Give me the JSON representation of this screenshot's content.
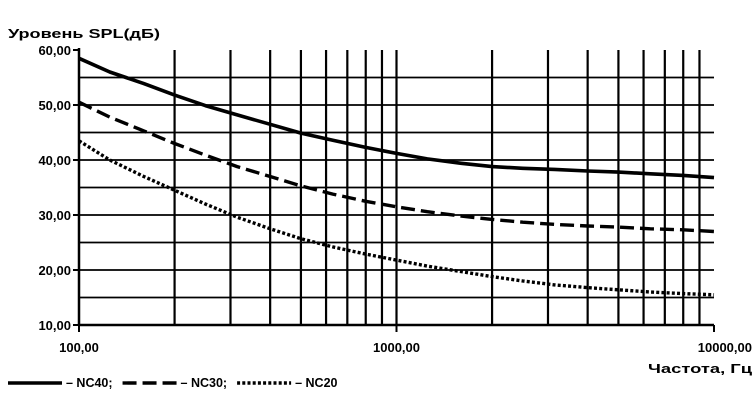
{
  "chart_data": {
    "type": "line",
    "title": "",
    "ylabel": "Уровень SPL(дБ)",
    "xlabel": "Частота, Гц",
    "x_scale": "log",
    "xlim": [
      100,
      10000
    ],
    "ylim": [
      10,
      60
    ],
    "grid": true,
    "legend_position": "bottom-left",
    "x_ticks": [
      100,
      1000,
      10000
    ],
    "x_tick_labels": [
      "100,00",
      "1000,00",
      "10000,00"
    ],
    "y_ticks": [
      10,
      20,
      30,
      40,
      50,
      60
    ],
    "y_tick_labels": [
      "10,00",
      "20,00",
      "30,00",
      "40,00",
      "50,00",
      "60,00"
    ],
    "x": [
      100,
      125,
      160,
      200,
      250,
      315,
      400,
      500,
      630,
      800,
      1000,
      1250,
      1600,
      2000,
      2500,
      3150,
      4000,
      5000,
      6300,
      8000,
      10000
    ],
    "series": [
      {
        "name": "NC40",
        "legend_label": "– NC40;",
        "style": "solid",
        "values": [
          58.5,
          56.0,
          53.9,
          51.8,
          49.9,
          48.2,
          46.5,
          44.9,
          43.6,
          42.3,
          41.2,
          40.2,
          39.4,
          38.8,
          38.5,
          38.3,
          38.0,
          37.8,
          37.5,
          37.2,
          36.8
        ]
      },
      {
        "name": "NC30",
        "legend_label": "– NC30;",
        "style": "dashed",
        "values": [
          50.5,
          47.8,
          45.3,
          43.0,
          40.9,
          38.8,
          37.0,
          35.3,
          33.8,
          32.5,
          31.5,
          30.6,
          29.8,
          29.2,
          28.7,
          28.3,
          28.0,
          27.8,
          27.5,
          27.3,
          27.0
        ]
      },
      {
        "name": "NC20",
        "legend_label": "– NC20",
        "style": "dotted",
        "values": [
          43.5,
          40.0,
          37.0,
          34.5,
          32.0,
          29.6,
          27.5,
          25.7,
          24.2,
          22.9,
          21.8,
          20.7,
          19.7,
          18.8,
          18.0,
          17.3,
          16.8,
          16.4,
          16.0,
          15.7,
          15.5
        ]
      }
    ]
  }
}
